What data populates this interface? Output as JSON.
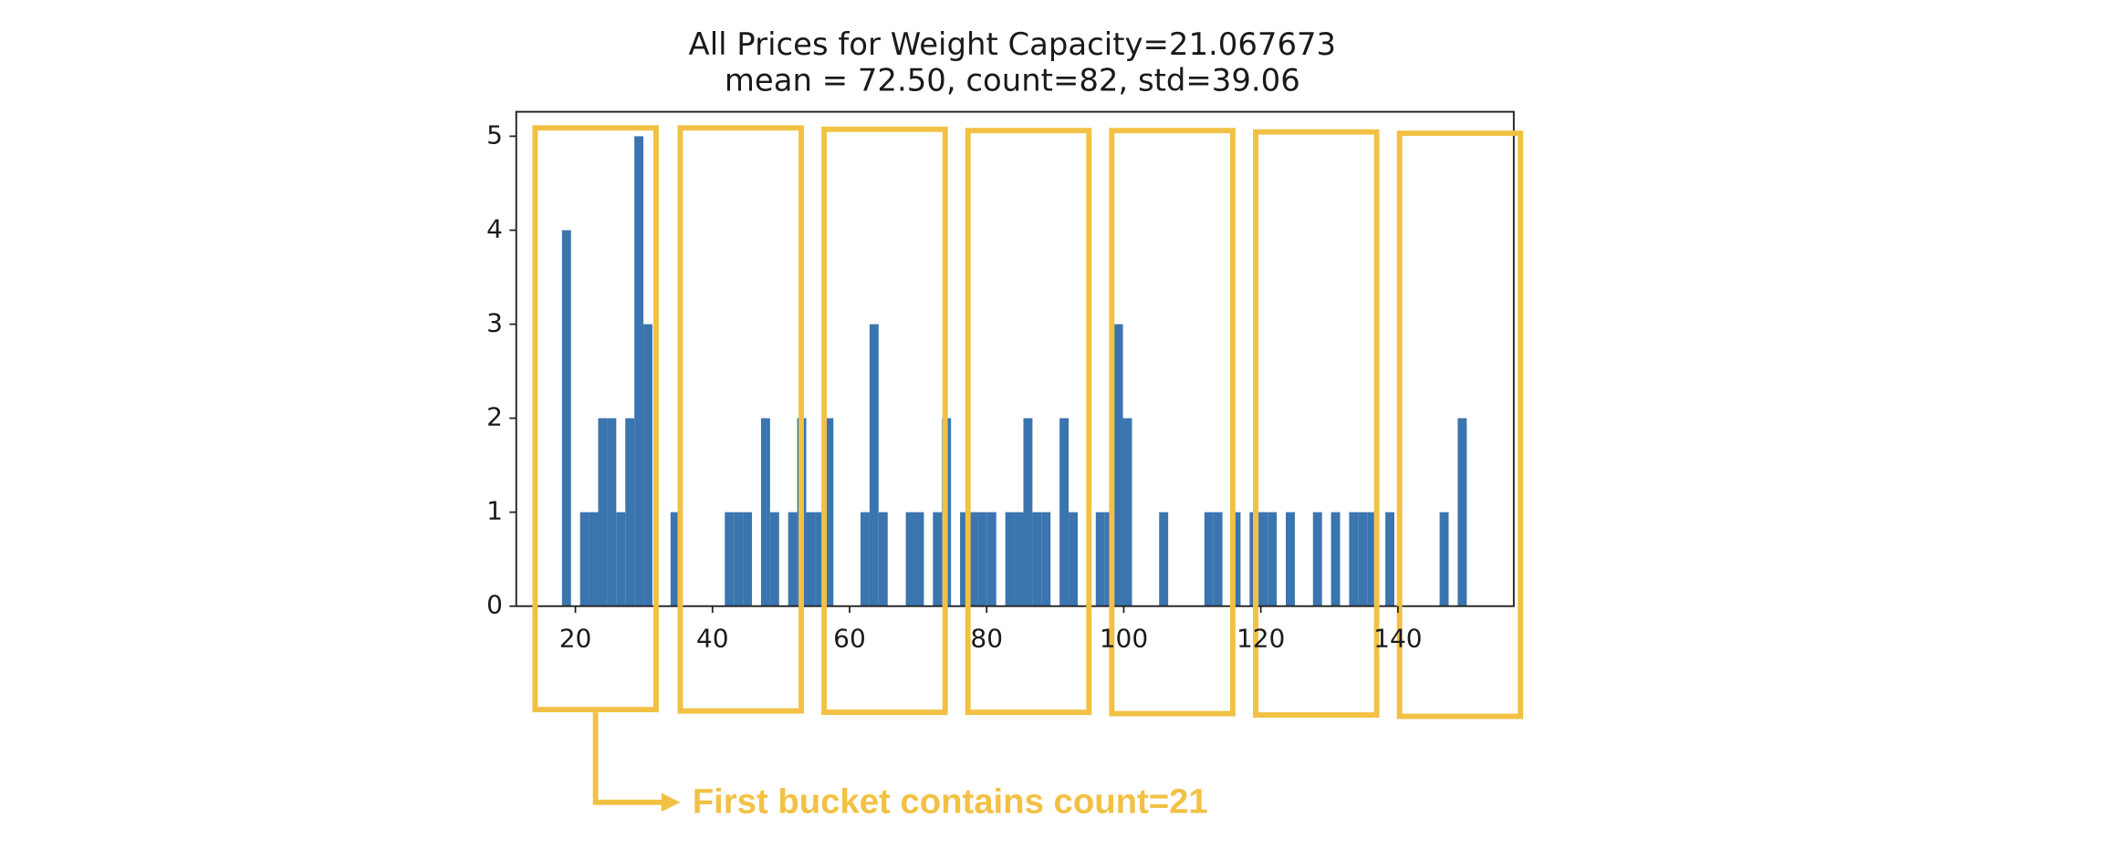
{
  "chart_data": {
    "type": "histogram",
    "title": "All Prices for Weight Capacity=21.067673",
    "subtitle": "mean = 72.50, count=82, std=39.06",
    "bins": [
      18.04,
      19.36,
      20.68,
      22,
      23.32,
      24.64,
      25.96,
      27.28,
      28.6,
      29.92,
      31.24,
      32.56,
      33.88,
      35.2,
      36.52,
      37.84,
      39.16,
      40.48,
      41.8,
      43.12,
      44.44,
      45.76,
      47.08,
      48.4,
      49.72,
      51.04,
      52.36,
      53.68,
      55,
      56.32,
      57.64,
      58.96,
      60.28,
      61.6,
      62.92,
      64.24,
      65.56,
      66.88,
      68.2,
      69.52,
      70.84,
      72.16,
      73.48,
      74.8,
      76.12,
      77.44,
      78.76,
      80.08,
      81.4,
      82.72,
      84.04,
      85.36,
      86.68,
      88,
      89.32,
      90.64,
      91.96,
      93.28,
      94.6,
      95.92,
      97.24,
      98.56,
      99.88,
      101.2,
      102.52,
      103.84,
      105.16,
      106.48,
      107.8,
      109.12,
      110.44,
      111.76,
      113.08,
      114.4,
      115.72,
      117.04,
      118.36,
      119.68,
      121,
      122.32,
      123.64,
      124.96,
      126.28,
      127.6,
      128.92,
      130.24,
      131.56,
      132.88,
      134.2,
      135.52,
      136.84,
      138.16,
      139.48,
      140.8,
      142.12,
      143.44,
      144.76,
      146.08,
      147.4,
      148.72,
      150.04
    ],
    "values": [
      4,
      0,
      1,
      1,
      2,
      2,
      1,
      2,
      5,
      3,
      0,
      0,
      1,
      0,
      0,
      0,
      0,
      0,
      1,
      1,
      1,
      0,
      2,
      1,
      0,
      1,
      2,
      1,
      1,
      2,
      0,
      0,
      0,
      1,
      3,
      1,
      0,
      0,
      1,
      1,
      0,
      1,
      2,
      0,
      1,
      1,
      1,
      1,
      0,
      1,
      1,
      2,
      1,
      1,
      0,
      2,
      1,
      0,
      0,
      1,
      1,
      3,
      2,
      0,
      0,
      0,
      1,
      0,
      0,
      0,
      0,
      1,
      1,
      0,
      1,
      0,
      1,
      1,
      1,
      0,
      1,
      0,
      0,
      1,
      0,
      1,
      0,
      1,
      1,
      1,
      0,
      1,
      0,
      0,
      0,
      0,
      0,
      1,
      0,
      2
    ],
    "color": "#3b75af",
    "xlim": [
      11.37,
      156.9
    ],
    "xticks": [
      20,
      40,
      60,
      80,
      100,
      120,
      140
    ],
    "ylim": [
      0,
      5.26
    ],
    "yticks": [
      0,
      1,
      2,
      3,
      4,
      5
    ],
    "annotation": "First bucket contains count=21"
  }
}
